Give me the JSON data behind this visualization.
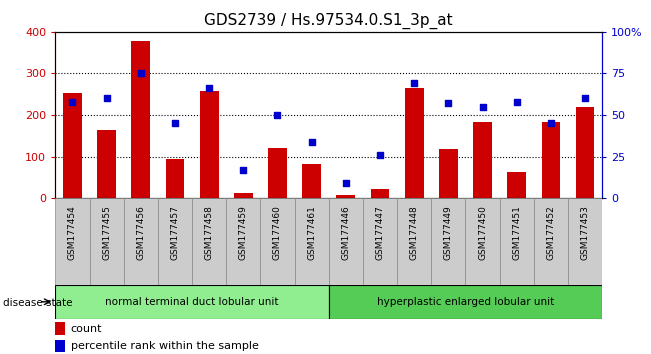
{
  "title": "GDS2739 / Hs.97534.0.S1_3p_at",
  "categories": [
    "GSM177454",
    "GSM177455",
    "GSM177456",
    "GSM177457",
    "GSM177458",
    "GSM177459",
    "GSM177460",
    "GSM177461",
    "GSM177446",
    "GSM177447",
    "GSM177448",
    "GSM177449",
    "GSM177450",
    "GSM177451",
    "GSM177452",
    "GSM177453"
  ],
  "counts": [
    252,
    165,
    378,
    95,
    257,
    12,
    120,
    83,
    8,
    22,
    265,
    118,
    183,
    63,
    183,
    220
  ],
  "percentiles": [
    58,
    60,
    75,
    45,
    66,
    17,
    50,
    34,
    9,
    26,
    69,
    57,
    55,
    58,
    45,
    60
  ],
  "group1_label": "normal terminal duct lobular unit",
  "group2_label": "hyperplastic enlarged lobular unit",
  "group1_count": 8,
  "group2_count": 8,
  "bar_color": "#cc0000",
  "dot_color": "#0000cc",
  "group1_bg": "#90ee90",
  "group2_bg": "#55cc55",
  "tick_bg": "#cccccc",
  "ylim_left": [
    0,
    400
  ],
  "ylim_right": [
    0,
    100
  ],
  "yticks_left": [
    0,
    100,
    200,
    300,
    400
  ],
  "yticks_right": [
    0,
    25,
    50,
    75,
    100
  ],
  "ytick_right_labels": [
    "0",
    "25",
    "50",
    "75",
    "100%"
  ],
  "grid_color": "#000000",
  "title_fontsize": 11,
  "label_fontsize": 8,
  "legend_fontsize": 8
}
